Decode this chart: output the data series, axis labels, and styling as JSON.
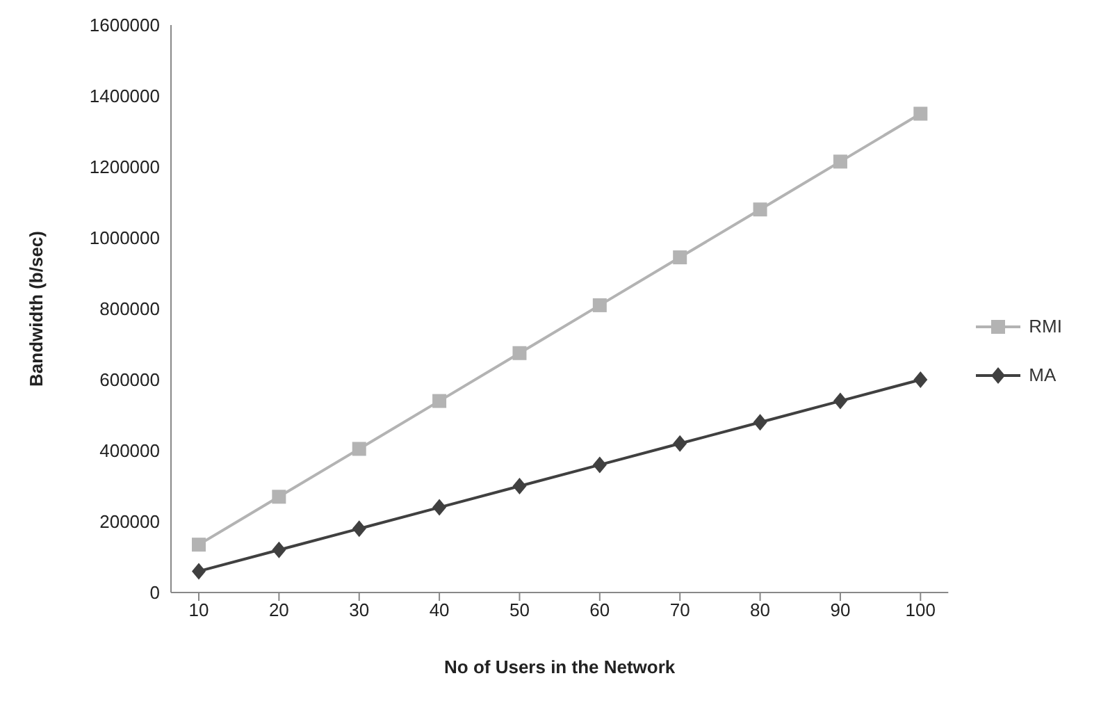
{
  "chart_data": {
    "type": "line",
    "xlabel": "No of Users in the Network",
    "ylabel": "Bandwidth  (b/sec)",
    "categories": [
      "10",
      "20",
      "30",
      "40",
      "50",
      "60",
      "70",
      "80",
      "90",
      "100"
    ],
    "series": [
      {
        "name": "RMI",
        "color": "#b3b3b3",
        "marker": "square",
        "values": [
          135000,
          270000,
          405000,
          540000,
          675000,
          810000,
          945000,
          1080000,
          1215000,
          1350000
        ]
      },
      {
        "name": "MA",
        "color": "#404040",
        "marker": "diamond",
        "values": [
          60000,
          120000,
          180000,
          240000,
          300000,
          360000,
          420000,
          480000,
          540000,
          600000
        ]
      }
    ],
    "ylim": [
      0,
      1600000
    ],
    "yticks": [
      0,
      200000,
      400000,
      600000,
      800000,
      1000000,
      1200000,
      1400000,
      1600000
    ],
    "grid": false,
    "legend": "right"
  }
}
